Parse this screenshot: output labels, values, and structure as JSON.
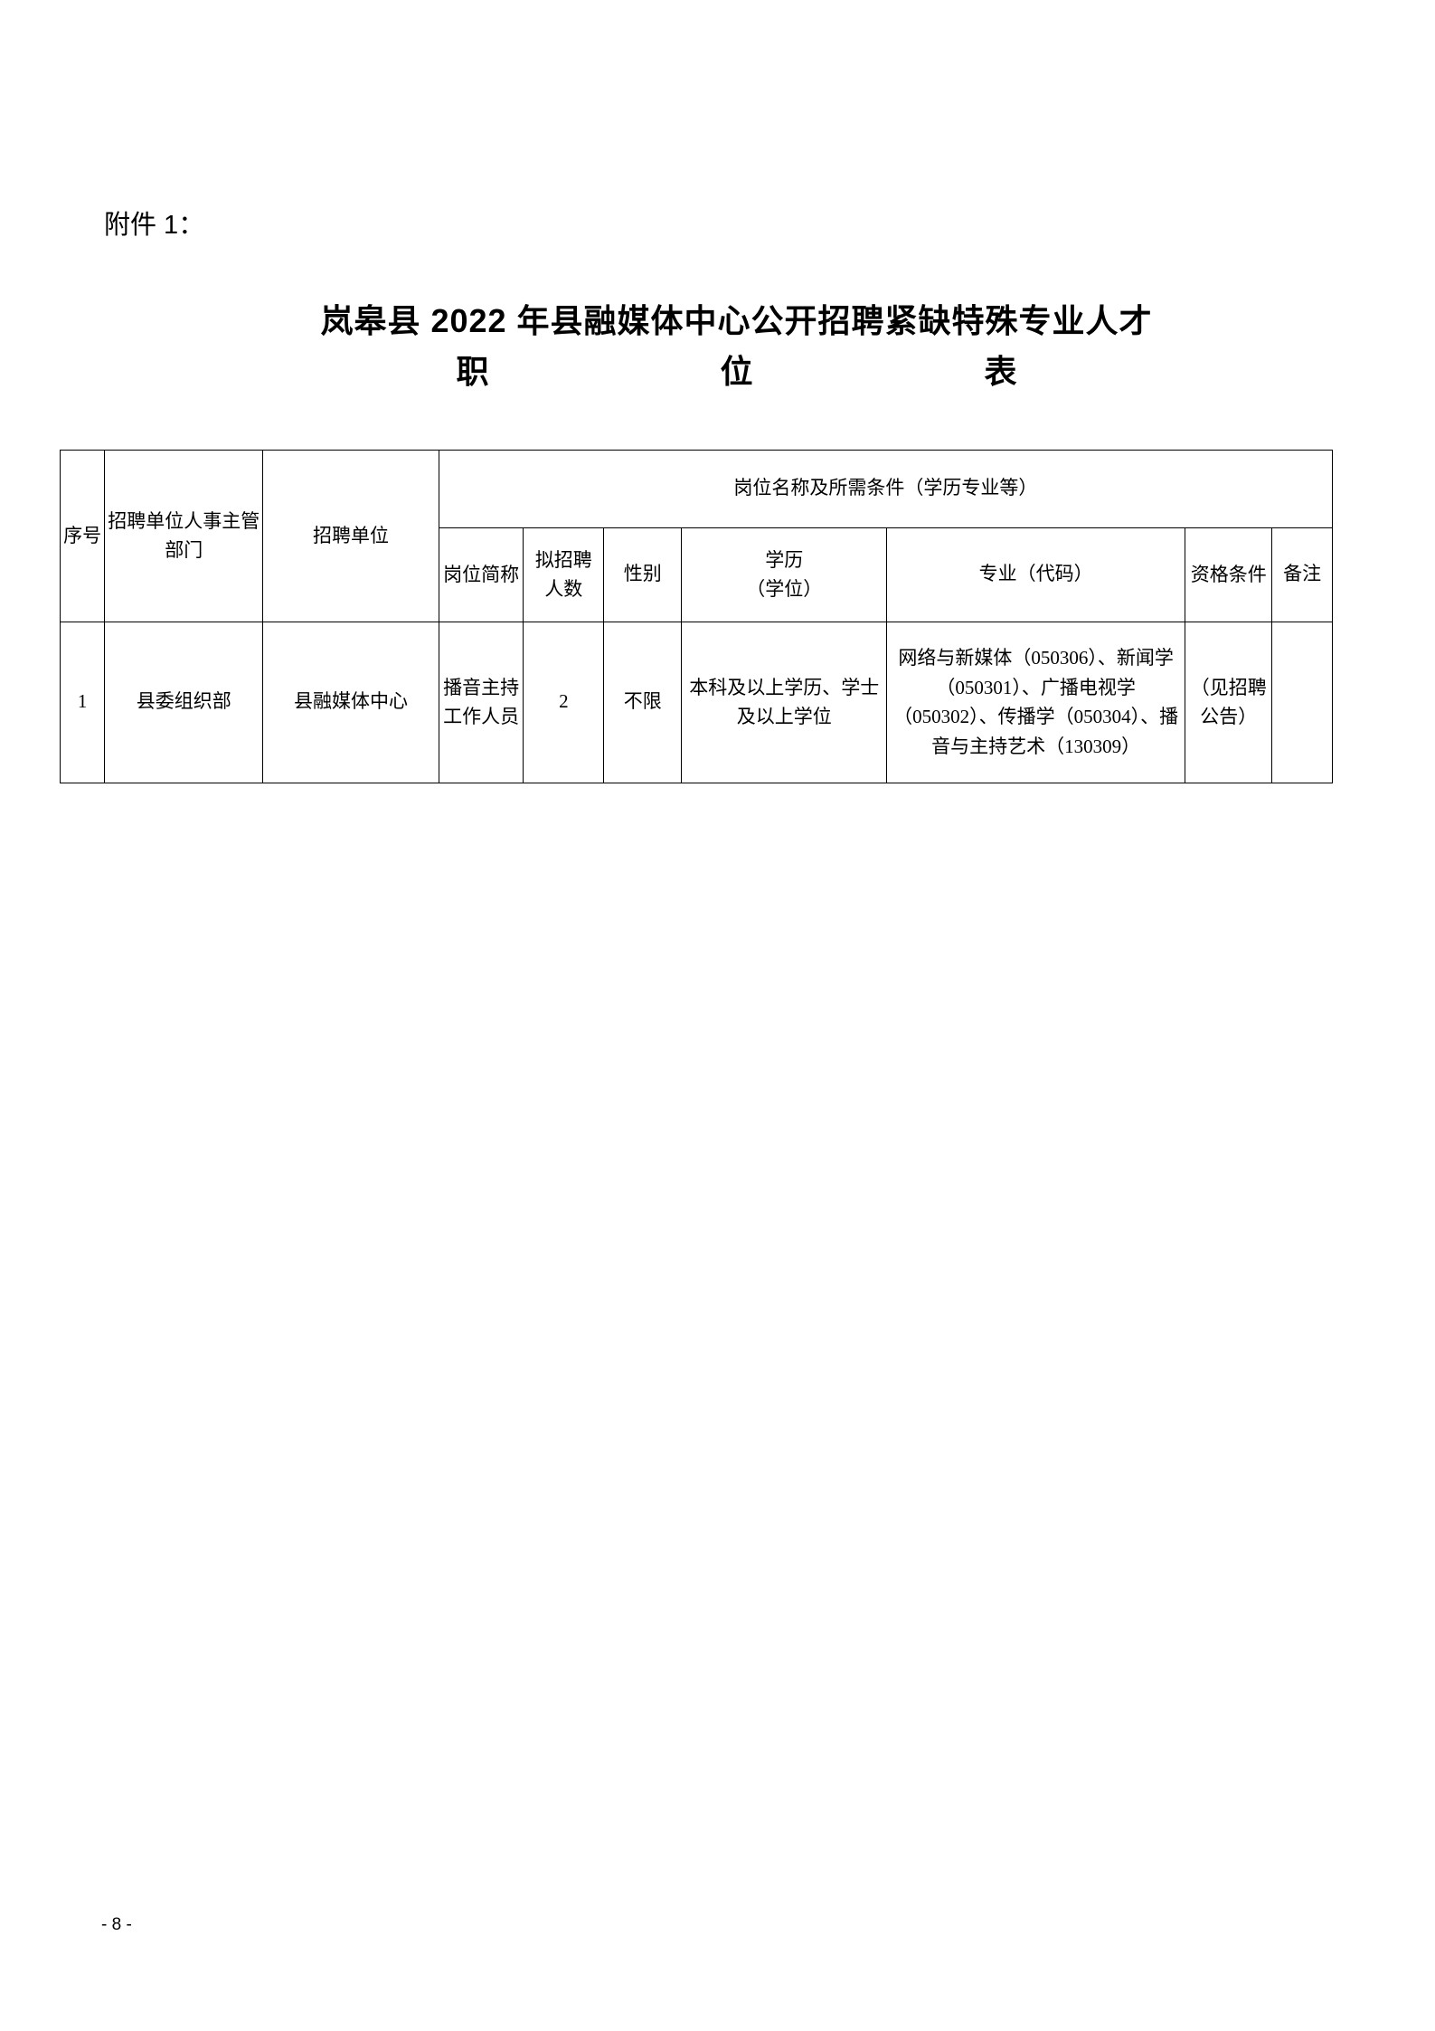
{
  "document": {
    "attachment_label": "附件 1：",
    "title_line1": "岚皋县 2022 年县融媒体中心公开招聘紧缺特殊专业人才",
    "title_char_1": "职",
    "title_char_2": "位",
    "title_char_3": "表",
    "page_number": "- 8 -"
  },
  "table": {
    "headers": {
      "seq": "序号",
      "dept": "招聘单位人事主管部门",
      "unit": "招聘单位",
      "conditions": "岗位名称及所需条件（学历专业等）",
      "position": "岗位简称",
      "number": "拟招聘人数",
      "gender": "性别",
      "education": "学历\n（学位）",
      "major": "专业（代码）",
      "qualification": "资格条件",
      "note": "备注"
    },
    "rows": [
      {
        "seq": "1",
        "dept": "县委组织部",
        "unit": "县融媒体中心",
        "position": "播音主持工作人员",
        "number": "2",
        "gender": "不限",
        "education": "本科及以上学历、学士及以上学位",
        "major": "网络与新媒体（050306）、新闻学（050301）、广播电视学（050302）、传播学（050304）、播音与主持艺术（130309）",
        "qualification": "（见招聘公告）",
        "note": ""
      }
    ]
  }
}
